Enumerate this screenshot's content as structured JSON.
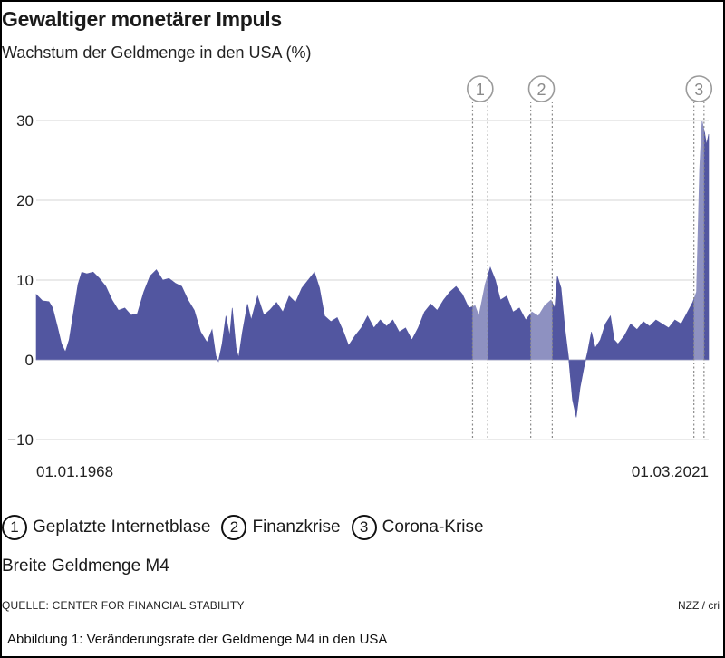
{
  "header": {
    "title": "Gewaltiger monetärer Impuls",
    "subtitle": "Wachstum der Geldmenge in den USA (%)"
  },
  "chart_data": {
    "type": "area",
    "title": "Gewaltiger monetärer Impuls",
    "ylabel": "Wachstum der Geldmenge in den USA (%)",
    "ylim": [
      -10,
      30
    ],
    "yticks": [
      {
        "value": 30,
        "label": "30"
      },
      {
        "value": 20,
        "label": "20"
      },
      {
        "value": 10,
        "label": "10"
      },
      {
        "value": 0,
        "label": "0"
      },
      {
        "value": -10,
        "label": "−10"
      }
    ],
    "xlim": [
      1968.0,
      2021.17
    ],
    "x_start_label": "01.01.1968",
    "x_end_label": "01.03.2021",
    "color": "#5256a0",
    "series": [
      {
        "name": "Breite Geldmenge M4",
        "points": [
          [
            1968.0,
            8.2
          ],
          [
            1968.5,
            7.4
          ],
          [
            1969.0,
            7.3
          ],
          [
            1969.3,
            6.5
          ],
          [
            1969.7,
            4.0
          ],
          [
            1970.0,
            2.0
          ],
          [
            1970.3,
            1.0
          ],
          [
            1970.6,
            2.5
          ],
          [
            1971.0,
            6.5
          ],
          [
            1971.3,
            9.5
          ],
          [
            1971.6,
            11.0
          ],
          [
            1972.0,
            10.8
          ],
          [
            1972.5,
            11.0
          ],
          [
            1973.0,
            10.2
          ],
          [
            1973.5,
            9.2
          ],
          [
            1974.0,
            7.5
          ],
          [
            1974.5,
            6.2
          ],
          [
            1975.0,
            6.5
          ],
          [
            1975.5,
            5.6
          ],
          [
            1976.0,
            5.8
          ],
          [
            1976.5,
            8.5
          ],
          [
            1977.0,
            10.5
          ],
          [
            1977.5,
            11.3
          ],
          [
            1978.0,
            10.0
          ],
          [
            1978.5,
            10.2
          ],
          [
            1979.0,
            9.6
          ],
          [
            1979.5,
            9.2
          ],
          [
            1980.0,
            7.5
          ],
          [
            1980.5,
            6.2
          ],
          [
            1981.0,
            3.5
          ],
          [
            1981.5,
            2.2
          ],
          [
            1981.9,
            3.8
          ],
          [
            1982.2,
            0.5
          ],
          [
            1982.4,
            -0.2
          ],
          [
            1982.7,
            2.0
          ],
          [
            1983.0,
            5.5
          ],
          [
            1983.3,
            3.0
          ],
          [
            1983.5,
            6.5
          ],
          [
            1983.8,
            1.5
          ],
          [
            1984.0,
            0.3
          ],
          [
            1984.3,
            3.5
          ],
          [
            1984.7,
            7.0
          ],
          [
            1985.0,
            5.0
          ],
          [
            1985.5,
            8.0
          ],
          [
            1986.0,
            5.6
          ],
          [
            1986.5,
            6.3
          ],
          [
            1987.0,
            7.2
          ],
          [
            1987.5,
            6.0
          ],
          [
            1988.0,
            8.0
          ],
          [
            1988.5,
            7.2
          ],
          [
            1989.0,
            9.0
          ],
          [
            1989.5,
            10.0
          ],
          [
            1990.0,
            11.0
          ],
          [
            1990.4,
            9.0
          ],
          [
            1990.8,
            5.5
          ],
          [
            1991.3,
            4.8
          ],
          [
            1991.8,
            5.3
          ],
          [
            1992.3,
            3.5
          ],
          [
            1992.7,
            1.8
          ],
          [
            1993.2,
            3.0
          ],
          [
            1993.7,
            4.0
          ],
          [
            1994.2,
            5.5
          ],
          [
            1994.7,
            4.0
          ],
          [
            1995.2,
            5.0
          ],
          [
            1995.7,
            4.2
          ],
          [
            1996.2,
            5.0
          ],
          [
            1996.7,
            3.5
          ],
          [
            1997.2,
            4.0
          ],
          [
            1997.7,
            2.5
          ],
          [
            1998.2,
            4.0
          ],
          [
            1998.7,
            6.0
          ],
          [
            1999.2,
            7.0
          ],
          [
            1999.7,
            6.2
          ],
          [
            2000.2,
            7.5
          ],
          [
            2000.7,
            8.5
          ],
          [
            2001.2,
            9.2
          ],
          [
            2001.7,
            8.2
          ],
          [
            2002.2,
            6.5
          ],
          [
            2002.7,
            6.8
          ],
          [
            2003.0,
            5.5
          ],
          [
            2003.5,
            9.5
          ],
          [
            2003.9,
            11.6
          ],
          [
            2004.3,
            10.0
          ],
          [
            2004.7,
            7.5
          ],
          [
            2005.2,
            8.0
          ],
          [
            2005.7,
            6.0
          ],
          [
            2006.2,
            6.5
          ],
          [
            2006.7,
            5.0
          ],
          [
            2007.2,
            6.0
          ],
          [
            2007.7,
            5.5
          ],
          [
            2008.2,
            6.8
          ],
          [
            2008.7,
            7.5
          ],
          [
            2009.0,
            6.5
          ],
          [
            2009.2,
            10.5
          ],
          [
            2009.5,
            9.0
          ],
          [
            2009.8,
            4.0
          ],
          [
            2010.1,
            0.2
          ],
          [
            2010.4,
            -5.0
          ],
          [
            2010.7,
            -7.2
          ],
          [
            2011.0,
            -3.5
          ],
          [
            2011.3,
            -1.0
          ],
          [
            2011.6,
            1.0
          ],
          [
            2011.9,
            3.5
          ],
          [
            2012.2,
            1.5
          ],
          [
            2012.6,
            2.5
          ],
          [
            2013.0,
            4.5
          ],
          [
            2013.4,
            5.5
          ],
          [
            2013.7,
            2.5
          ],
          [
            2014.0,
            2.0
          ],
          [
            2014.5,
            3.0
          ],
          [
            2015.0,
            4.5
          ],
          [
            2015.5,
            3.8
          ],
          [
            2016.0,
            4.8
          ],
          [
            2016.5,
            4.2
          ],
          [
            2017.0,
            5.0
          ],
          [
            2017.5,
            4.5
          ],
          [
            2018.0,
            4.0
          ],
          [
            2018.5,
            5.0
          ],
          [
            2019.0,
            4.5
          ],
          [
            2019.5,
            6.0
          ],
          [
            2019.9,
            7.2
          ],
          [
            2020.2,
            8.5
          ],
          [
            2020.45,
            24.0
          ],
          [
            2020.65,
            30.0
          ],
          [
            2020.85,
            28.5
          ],
          [
            2021.0,
            27.0
          ],
          [
            2021.17,
            28.3
          ]
        ]
      }
    ],
    "events": [
      {
        "number": "1",
        "label": "Geplatzte Internetblase",
        "start": 2002.5,
        "end": 2003.7
      },
      {
        "number": "2",
        "label": "Finanzkrise",
        "start": 2007.1,
        "end": 2008.8
      },
      {
        "number": "3",
        "label": "Corona-Krise",
        "start": 2020.0,
        "end": 2020.8
      }
    ]
  },
  "legend": {
    "items": [
      {
        "number": "1",
        "label": "Geplatzte Internetblase"
      },
      {
        "number": "2",
        "label": "Finanzkrise"
      },
      {
        "number": "3",
        "label": "Corona-Krise"
      }
    ],
    "series_label": "Breite Geldmenge M4"
  },
  "footer": {
    "source": "QUELLE: CENTER FOR FINANCIAL STABILITY",
    "credit": "NZZ / cri",
    "caption": "Abbildung 1: Veränderungsrate der Geldmenge M4 in den USA"
  }
}
